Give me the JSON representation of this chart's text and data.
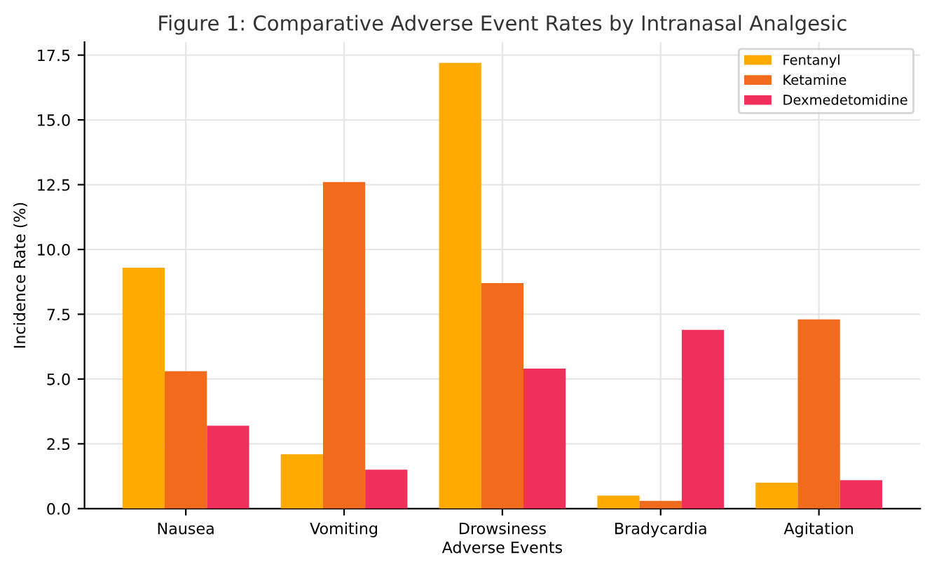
{
  "chart_data": {
    "type": "bar",
    "title": "Figure 1: Comparative Adverse Event Rates by Intranasal Analgesic",
    "xlabel": "Adverse Events",
    "ylabel": "Incidence Rate (%)",
    "categories": [
      "Nausea",
      "Vomiting",
      "Drowsiness",
      "Bradycardia",
      "Agitation"
    ],
    "series": [
      {
        "name": "Fentanyl",
        "color": "#ffaa00",
        "values": [
          9.3,
          2.1,
          17.2,
          0.5,
          1.0
        ]
      },
      {
        "name": "Ketamine",
        "color": "#f26b1d",
        "values": [
          5.3,
          12.6,
          8.7,
          0.3,
          7.3
        ]
      },
      {
        "name": "Dexmedetomidine",
        "color": "#f0305a",
        "values": [
          3.2,
          1.5,
          5.4,
          6.9,
          1.1
        ]
      }
    ],
    "ylim": [
      0,
      18
    ],
    "yticks": [
      {
        "value": 0,
        "label": "0.0"
      },
      {
        "value": 2.5,
        "label": "2.5"
      },
      {
        "value": 5,
        "label": "5.0"
      },
      {
        "value": 7.5,
        "label": "7.5"
      },
      {
        "value": 10,
        "label": "10.0"
      },
      {
        "value": 12.5,
        "label": "12.5"
      },
      {
        "value": 15,
        "label": "15.0"
      },
      {
        "value": 17.5,
        "label": "17.5"
      }
    ],
    "grid": true,
    "legend": "top right"
  }
}
